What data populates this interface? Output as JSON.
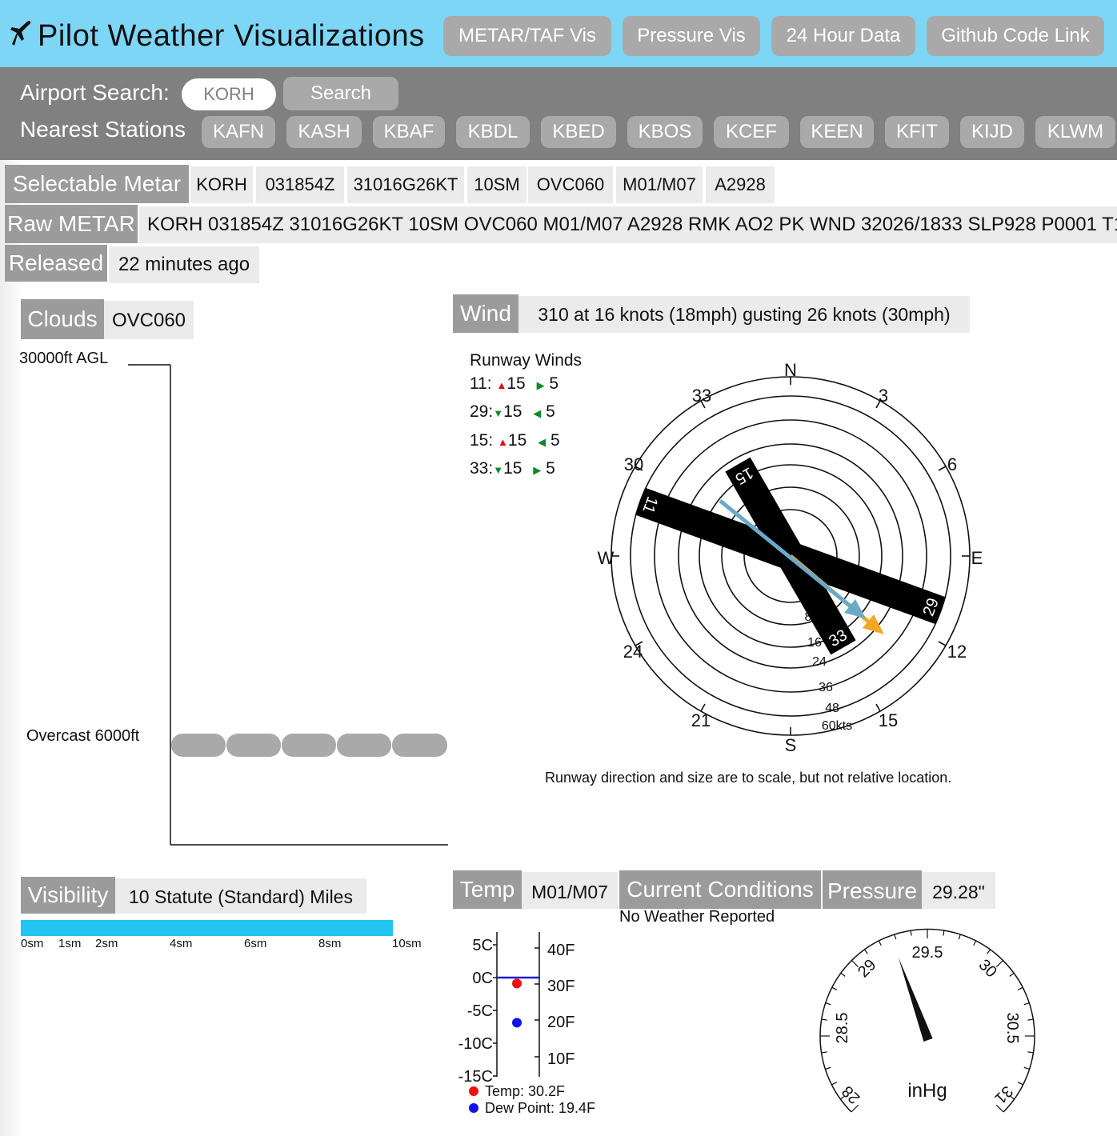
{
  "header": {
    "app_title": "Pilot Weather Visualizations",
    "nav": [
      "METAR/TAF Vis",
      "Pressure Vis",
      "24 Hour Data",
      "Github Code Link"
    ]
  },
  "search": {
    "label": "Airport Search:",
    "input_value": "KORH",
    "button_label": "Search",
    "nearest_label": "Nearest Stations",
    "stations": [
      "KAFN",
      "KASH",
      "KBAF",
      "KBDL",
      "KBED",
      "KBOS",
      "KCEF",
      "KEEN",
      "KFIT",
      "KIJD",
      "KLWM"
    ]
  },
  "metar": {
    "selectable_label": "Selectable Metar",
    "tokens": [
      "KORH",
      "031854Z",
      "31016G26KT",
      "10SM",
      "OVC060",
      "M01/M07",
      "A2928"
    ],
    "raw_label": "Raw METAR",
    "raw_text": "KORH 031854Z 31016G26KT 10SM OVC060 M01/M07 A2928 RMK AO2 PK WND 32026/1833 SLP928 P0001 T1",
    "released_label": "Released",
    "released_value": "22 minutes ago"
  },
  "clouds": {
    "label": "Clouds",
    "value": "OVC060",
    "top_label": "30000ft AGL",
    "layer_label": "Overcast 6000ft",
    "layer_altitude_ft": 6000,
    "max_altitude_ft": 30000
  },
  "wind": {
    "label": "Wind",
    "value": "310 at 16 knots (18mph) gusting 26 knots (30mph)",
    "direction_deg": 310,
    "speed_kts": 16,
    "gust_kts": 26,
    "runway_title": "Runway Winds",
    "runways": [
      {
        "name": "11:",
        "head": "15",
        "head_dir": "up",
        "cross": "5",
        "cross_dir": "right"
      },
      {
        "name": "29:",
        "head": "15",
        "head_dir": "down",
        "cross": "5",
        "cross_dir": "left"
      },
      {
        "name": "15:",
        "head": "15",
        "head_dir": "up",
        "cross": "5",
        "cross_dir": "left"
      },
      {
        "name": "33:",
        "head": "15",
        "head_dir": "down",
        "cross": "5",
        "cross_dir": "right"
      }
    ],
    "compass_labels": {
      "n": "N",
      "e": "E",
      "s": "S",
      "w": "W"
    },
    "heading_labels": [
      "33",
      "3",
      "6",
      "12",
      "15",
      "21",
      "24",
      "30"
    ],
    "ring_labels": [
      "8",
      "16",
      "24",
      "36",
      "48",
      "60kts"
    ],
    "runway_labels": {
      "rw11": "11",
      "rw29": "29",
      "rw15": "15",
      "rw33": "33"
    },
    "note": "Runway direction and size are to scale, but not relative location.",
    "colors": {
      "wind_arrow": "#6aaac6",
      "gust_arrow": "#f5a623"
    }
  },
  "visibility": {
    "label": "Visibility",
    "value": "10 Statute (Standard) Miles",
    "visibility_sm": 10,
    "ticks": [
      "0sm",
      "1sm",
      "2sm",
      "4sm",
      "6sm",
      "8sm",
      "10sm"
    ],
    "bar_color": "#22c4f2"
  },
  "temp": {
    "label": "Temp",
    "value": "M01/M07",
    "c_ticks": [
      "5C",
      "0C",
      "-5C",
      "-10C",
      "-15C"
    ],
    "f_ticks": [
      "40F",
      "30F",
      "20F",
      "10F"
    ],
    "temp_legend": "Temp: 30.2F",
    "dew_legend": "Dew Point: 19.4F",
    "temp_f": 30.2,
    "dew_f": 19.4
  },
  "conditions": {
    "label": "Current Conditions",
    "value": "No Weather Reported"
  },
  "pressure": {
    "label": "Pressure",
    "value": "29.28\"",
    "inhg": 29.28,
    "dial_labels": [
      "28",
      "28.5",
      "29",
      "29.5",
      "30",
      "30.5",
      "31"
    ],
    "unit": "inHg"
  }
}
